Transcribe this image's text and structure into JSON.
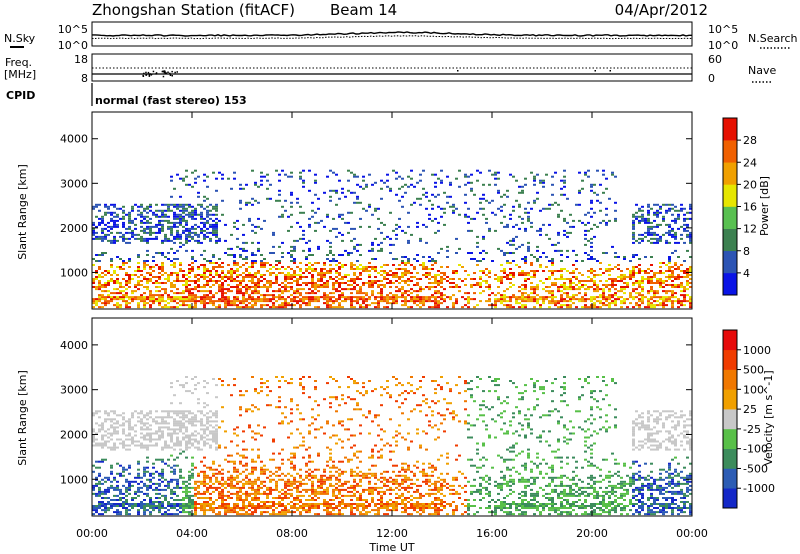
{
  "header": {
    "station": "Zhongshan Station (fitACF)",
    "beam": "Beam 14",
    "date": "04/Apr/2012"
  },
  "status_panels": {
    "nsky_label": "N.Sky",
    "nsearch_label": "N.Search",
    "noise_ticks": [
      "10^5",
      "10^0"
    ],
    "freq_label": "Freq.",
    "freq_unit": "[MHz]",
    "freq_ticks": [
      "18",
      "8"
    ],
    "nave_label": "Nave",
    "nave_ticks": [
      "60",
      "0"
    ],
    "cpid_label": "CPID",
    "cpid_text": "normal (fast stereo) 153"
  },
  "chart_data": [
    {
      "type": "heatmap",
      "name": "power",
      "ylabel": "Slant Range [km]",
      "yticks": [
        1000,
        2000,
        3000,
        4000
      ],
      "ylim": [
        180,
        4600
      ],
      "colorbar_label": "Power [dB]",
      "colorbar_ticks": [
        "4",
        "8",
        "12",
        "16",
        "20",
        "24",
        "28"
      ],
      "colors": [
        "#0a14e6",
        "#2c54b4",
        "#3c8050",
        "#58c050",
        "#e6e600",
        "#f0a000",
        "#f06000",
        "#e61000"
      ]
    },
    {
      "type": "heatmap",
      "name": "velocity",
      "ylabel": "Slant Range [km]",
      "yticks": [
        1000,
        2000,
        3000,
        4000
      ],
      "ylim": [
        180,
        4600
      ],
      "colorbar_label": "Velocity [m s^-1]",
      "colorbar_ticks": [
        "1000",
        "500",
        "100",
        "25",
        "-25",
        "-100",
        "-500",
        "-1000"
      ],
      "colors": [
        "#1428c8",
        "#2c5cb4",
        "#3c8c5c",
        "#58c048",
        "#c8c8c8",
        "#f0a000",
        "#f07800",
        "#f03c00",
        "#e60a0a"
      ]
    }
  ],
  "xaxis": {
    "label": "Time UT",
    "ticks": [
      "00:00",
      "04:00",
      "08:00",
      "12:00",
      "16:00",
      "20:00",
      "00:00"
    ]
  }
}
